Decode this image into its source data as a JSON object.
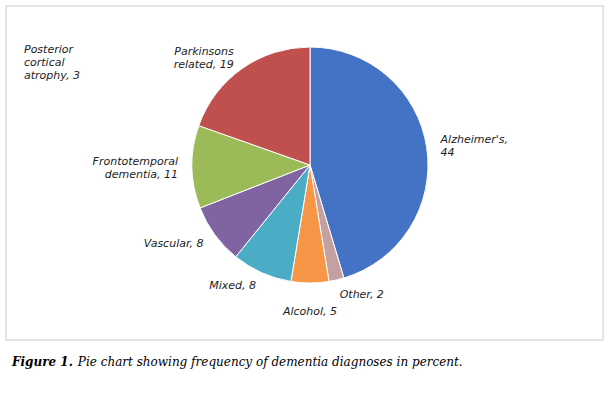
{
  "chart_data": {
    "type": "pie",
    "categories": [
      "Alzheimer's,\n44",
      "Other, 2",
      "Alcohol, 5",
      "Mixed, 8",
      "Vascular, 8",
      "Frontotemporal\ndementia, 11",
      "Parkinsons\nrelated, 19"
    ],
    "values": [
      44,
      2,
      5,
      8,
      8,
      11,
      19
    ],
    "colors": [
      "#4472c4",
      "#c4a0a0",
      "#f79646",
      "#4bacc6",
      "#8064a2",
      "#9bbb59",
      "#c0504d"
    ],
    "annotations": [
      "Posterior\ncortical\natrophy, 3"
    ],
    "caption_label": "Figure 1.",
    "caption": "Pie chart showing frequency of dementia diagnoses in percent."
  }
}
